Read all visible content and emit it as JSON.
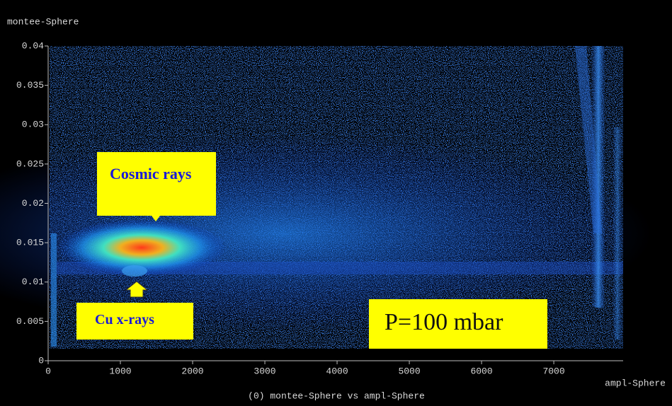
{
  "chart_data": {
    "type": "heatmap",
    "title": "(0) montee-Sphere vs ampl-Sphere",
    "x_label": "ampl-Sphere",
    "y_label": "montee-Sphere",
    "xlim": [
      0,
      7960
    ],
    "xticks": [
      0,
      1000,
      2000,
      3000,
      4000,
      5000,
      6000,
      7000
    ],
    "ylim": [
      0,
      0.04
    ],
    "yticks": [
      0,
      0.005,
      0.01,
      0.015,
      0.02,
      0.025,
      0.03,
      0.035,
      0.04
    ],
    "annotations": [
      {
        "text": "Cosmic rays"
      },
      {
        "text": "Cu x-rays"
      },
      {
        "text": "P=100 mbar"
      }
    ]
  }
}
